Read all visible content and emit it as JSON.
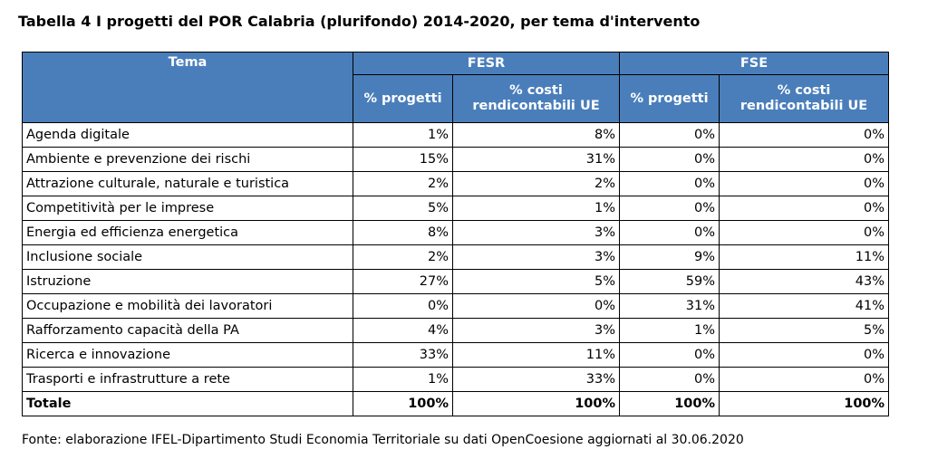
{
  "title": "Tabella 4 I progetti del POR Calabria (plurifondo) 2014-2020, per tema d'intervento",
  "header": {
    "tema": "Tema",
    "fesr": "FESR",
    "fse": "FSE",
    "pct_progetti": "% progetti",
    "pct_costi_line1": "% costi",
    "pct_costi_line2": "rendicontabili UE"
  },
  "rows": [
    {
      "tema": "Agenda digitale",
      "fesr_progetti": "1%",
      "fesr_costi": "8%",
      "fse_progetti": "0%",
      "fse_costi": "0%"
    },
    {
      "tema": "Ambiente e prevenzione dei rischi",
      "fesr_progetti": "15%",
      "fesr_costi": "31%",
      "fse_progetti": "0%",
      "fse_costi": "0%"
    },
    {
      "tema": "Attrazione culturale, naturale e turistica",
      "fesr_progetti": "2%",
      "fesr_costi": "2%",
      "fse_progetti": "0%",
      "fse_costi": "0%"
    },
    {
      "tema": "Competitività per le imprese",
      "fesr_progetti": "5%",
      "fesr_costi": "1%",
      "fse_progetti": "0%",
      "fse_costi": "0%"
    },
    {
      "tema": "Energia ed efficienza energetica",
      "fesr_progetti": "8%",
      "fesr_costi": "3%",
      "fse_progetti": "0%",
      "fse_costi": "0%"
    },
    {
      "tema": "Inclusione sociale",
      "fesr_progetti": "2%",
      "fesr_costi": "3%",
      "fse_progetti": "9%",
      "fse_costi": "11%"
    },
    {
      "tema": "Istruzione",
      "fesr_progetti": "27%",
      "fesr_costi": "5%",
      "fse_progetti": "59%",
      "fse_costi": "43%"
    },
    {
      "tema": "Occupazione e mobilità dei lavoratori",
      "fesr_progetti": "0%",
      "fesr_costi": "0%",
      "fse_progetti": "31%",
      "fse_costi": "41%"
    },
    {
      "tema": "Rafforzamento capacità della PA",
      "fesr_progetti": "4%",
      "fesr_costi": "3%",
      "fse_progetti": "1%",
      "fse_costi": "5%"
    },
    {
      "tema": "Ricerca e innovazione",
      "fesr_progetti": "33%",
      "fesr_costi": "11%",
      "fse_progetti": "0%",
      "fse_costi": "0%"
    },
    {
      "tema": "Trasporti e infrastrutture a rete",
      "fesr_progetti": "1%",
      "fesr_costi": "33%",
      "fse_progetti": "0%",
      "fse_costi": "0%"
    }
  ],
  "total": {
    "tema": "Totale",
    "fesr_progetti": "100%",
    "fesr_costi": "100%",
    "fse_progetti": "100%",
    "fse_costi": "100%"
  },
  "source": "Fonte: elaborazione IFEL-Dipartimento Studi Economia Territoriale su dati OpenCoesione aggiornati al 30.06.2020",
  "colors": {
    "header_bg": "#4a7ebb",
    "header_text": "#ffffff"
  }
}
